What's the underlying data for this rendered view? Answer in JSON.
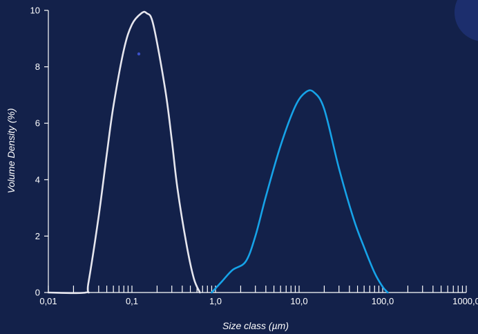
{
  "chart_data": {
    "type": "line",
    "title": "",
    "xlabel": "Size class (µm)",
    "ylabel": "Volume Density (%)",
    "x_scale": "log",
    "xlim": [
      0.01,
      1000
    ],
    "ylim": [
      0,
      10
    ],
    "x_ticks": [
      0.01,
      0.1,
      1,
      10,
      100,
      1000
    ],
    "x_tick_labels": [
      "0,01",
      "0,1",
      "1,0",
      "10,0",
      "100,0",
      "1000,0"
    ],
    "y_ticks": [
      0,
      2,
      4,
      6,
      8,
      10
    ],
    "y_tick_labels": [
      "0",
      "2",
      "4",
      "6",
      "8",
      "10"
    ],
    "grid": false,
    "series": [
      {
        "color": "#e6e6ee",
        "points": [
          [
            0.01,
            0
          ],
          [
            0.028,
            0
          ],
          [
            0.03,
            0.3
          ],
          [
            0.04,
            2.7
          ],
          [
            0.05,
            4.9
          ],
          [
            0.06,
            6.6
          ],
          [
            0.08,
            8.6
          ],
          [
            0.1,
            9.5
          ],
          [
            0.13,
            9.9
          ],
          [
            0.15,
            9.9
          ],
          [
            0.18,
            9.5
          ],
          [
            0.25,
            7.2
          ],
          [
            0.3,
            5.4
          ],
          [
            0.35,
            3.7
          ],
          [
            0.45,
            1.7
          ],
          [
            0.55,
            0.5
          ],
          [
            0.65,
            0
          ]
        ]
      },
      {
        "color": "#16a3e8",
        "points": [
          [
            0.9,
            0
          ],
          [
            1.2,
            0.4
          ],
          [
            1.6,
            0.8
          ],
          [
            2.3,
            1.1
          ],
          [
            3.0,
            2.0
          ],
          [
            4.0,
            3.4
          ],
          [
            6.0,
            5.2
          ],
          [
            9.0,
            6.6
          ],
          [
            12.0,
            7.1
          ],
          [
            15.0,
            7.1
          ],
          [
            20.0,
            6.5
          ],
          [
            30.0,
            4.4
          ],
          [
            45.0,
            2.6
          ],
          [
            60.0,
            1.6
          ],
          [
            80.0,
            0.7
          ],
          [
            100.0,
            0.2
          ],
          [
            115.0,
            0
          ]
        ]
      }
    ]
  }
}
